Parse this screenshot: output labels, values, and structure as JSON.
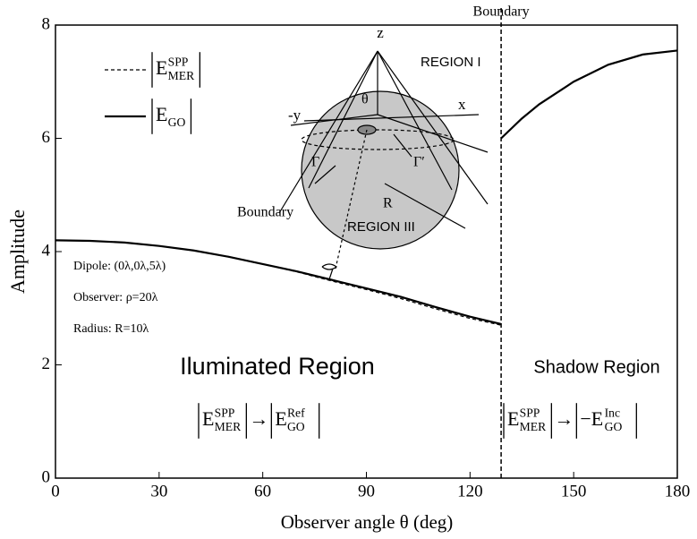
{
  "chart_data": {
    "type": "line",
    "xlabel": "Observer angle θ (deg)",
    "ylabel": "Amplitude",
    "xlim": [
      0,
      180
    ],
    "ylim": [
      0,
      8
    ],
    "xticks": [
      0,
      30,
      60,
      90,
      120,
      150,
      180
    ],
    "yticks": [
      0,
      2,
      4,
      6,
      8
    ],
    "boundary": {
      "label": "Boundary",
      "x": 129
    },
    "series": [
      {
        "name": {
          "base": "E",
          "sub": "MER",
          "sup": "SPP"
        },
        "style": "dashed",
        "color": "#000000",
        "x": [
          0,
          10,
          20,
          30,
          40,
          50,
          60,
          70,
          80,
          90,
          100,
          110,
          120,
          129,
          null,
          129,
          135,
          140,
          150,
          160,
          170,
          180
        ],
        "values": [
          4.2,
          4.19,
          4.16,
          4.1,
          4.02,
          3.91,
          3.78,
          3.64,
          3.48,
          3.33,
          3.17,
          2.99,
          2.82,
          2.7,
          null,
          6.0,
          6.35,
          6.6,
          7.0,
          7.3,
          7.48,
          7.55
        ]
      },
      {
        "name": {
          "base": "E",
          "sub": "GO",
          "sup": ""
        },
        "style": "solid",
        "color": "#000000",
        "x": [
          0,
          10,
          20,
          30,
          40,
          50,
          60,
          70,
          80,
          90,
          100,
          110,
          120,
          129,
          null,
          129,
          135,
          140,
          150,
          160,
          170,
          180
        ],
        "values": [
          4.2,
          4.19,
          4.16,
          4.1,
          4.02,
          3.91,
          3.78,
          3.65,
          3.5,
          3.35,
          3.2,
          3.02,
          2.85,
          2.72,
          null,
          6.0,
          6.35,
          6.6,
          7.0,
          7.3,
          7.48,
          7.55
        ]
      }
    ],
    "annotations": [
      "Dipole: (0λ,0λ,5λ)",
      "Observer: ρ=20λ",
      "Radius: R=10λ"
    ],
    "regions": {
      "illuminated": "Iluminated Region",
      "shadow": "Shadow Region"
    },
    "formulas": {
      "illuminated": {
        "left": {
          "base": "E",
          "sub": "MER",
          "sup": "SPP"
        },
        "arrow": "→",
        "right": {
          "base": "E",
          "sub": "GO",
          "sup": "Ref"
        }
      },
      "shadow": {
        "left": {
          "base": "E",
          "sub": "MER",
          "sup": "SPP"
        },
        "arrow": "→",
        "right": {
          "base": "−E",
          "sub": "GO",
          "sup": "Inc"
        }
      }
    },
    "inset": {
      "z": "z",
      "x": "-y",
      "x2": "x",
      "region1": "REGION I",
      "theta": "θ",
      "gamma": "Γ",
      "gamma2": "Γ′",
      "boundary": "Boundary",
      "r": "R",
      "region3": "REGION III"
    }
  }
}
